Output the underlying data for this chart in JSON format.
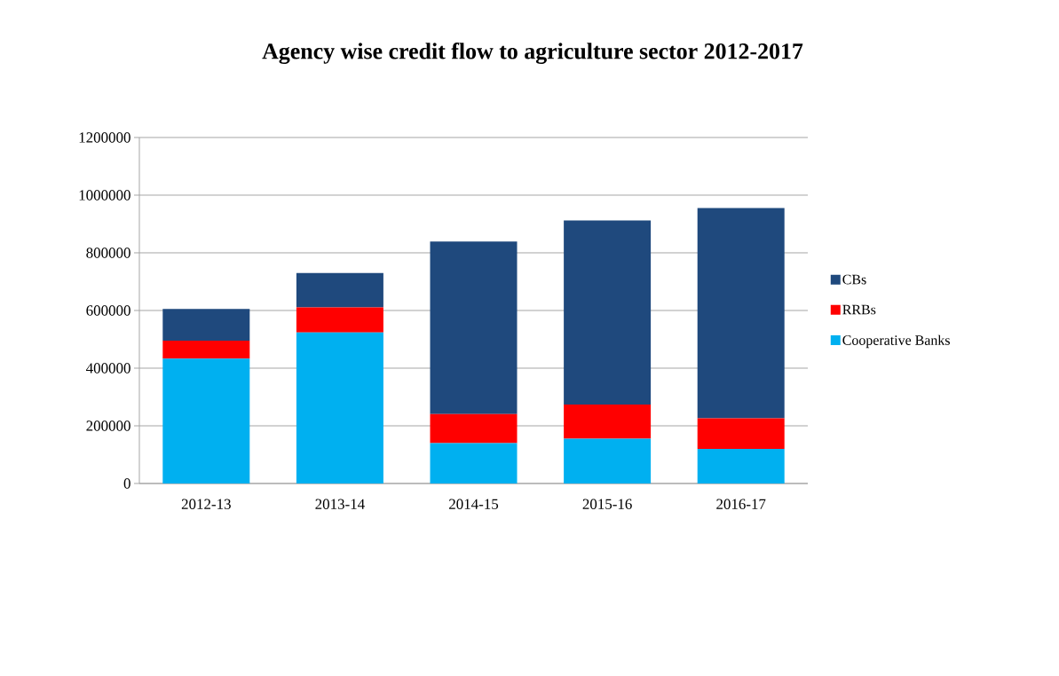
{
  "chart_data": {
    "type": "bar",
    "title": "Agency wise credit flow to agriculture sector 2012-2017",
    "categories": [
      "2012-13",
      "2013-14",
      "2014-15",
      "2015-16",
      "2016-17"
    ],
    "stacked": true,
    "series": [
      {
        "name": "Cooperative Banks",
        "color": "#00b0f0",
        "values": [
          433000,
          524000,
          140000,
          155000,
          120000
        ]
      },
      {
        "name": "RRBs",
        "color": "#ff0000",
        "values": [
          62000,
          87000,
          101000,
          119000,
          106000
        ]
      },
      {
        "name": "CBs",
        "color": "#1f497d",
        "values": [
          110000,
          119000,
          598000,
          638000,
          729000
        ]
      }
    ],
    "ylim": [
      0,
      1200000
    ],
    "yticks": [
      0,
      200000,
      400000,
      600000,
      800000,
      1000000,
      1200000
    ],
    "grid": "y",
    "legend": "right"
  }
}
